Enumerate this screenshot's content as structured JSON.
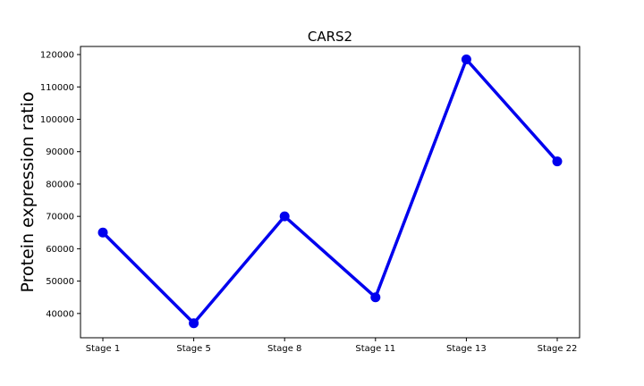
{
  "chart_data": {
    "type": "line",
    "title": "CARS2",
    "xlabel": "",
    "ylabel": "Protein expression ratio",
    "categories": [
      "Stage 1",
      "Stage 5",
      "Stage 8",
      "Stage 11",
      "Stage 13",
      "Stage 22"
    ],
    "series": [
      {
        "values": [
          65000,
          37000,
          70000,
          45000,
          118500,
          87000
        ],
        "color": "#0000ee"
      }
    ],
    "yticks": [
      "40000",
      "50000",
      "60000",
      "70000",
      "80000",
      "90000",
      "100000",
      "110000",
      "120000"
    ],
    "ylim": [
      32500,
      122500
    ],
    "grid": false,
    "legend": "none"
  }
}
